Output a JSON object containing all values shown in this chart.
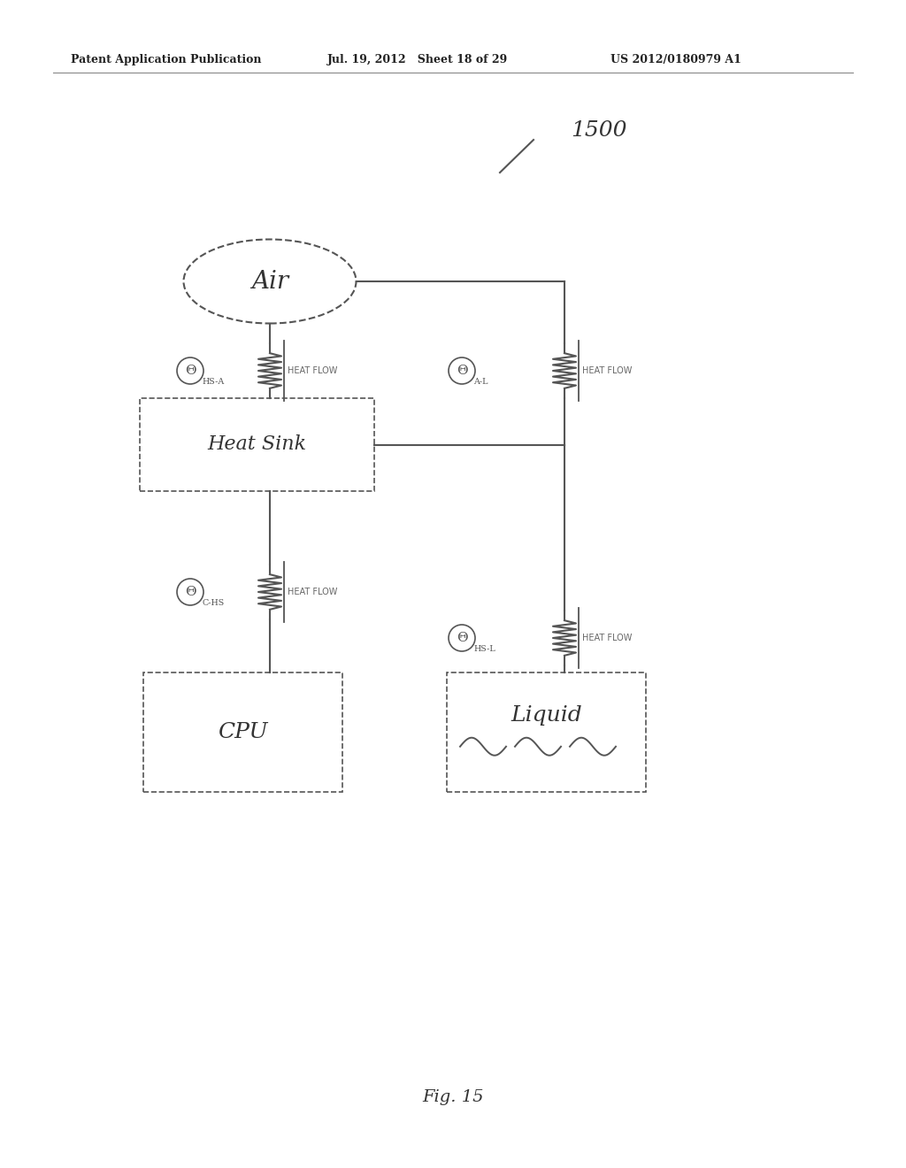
{
  "bg_color": "#ffffff",
  "header_left": "Patent Application Publication",
  "header_mid": "Jul. 19, 2012   Sheet 18 of 29",
  "header_right": "US 2012/0180979 A1",
  "label_1500": "1500",
  "fig_label": "Fig. 15",
  "air_text": "Air",
  "heat_sink_text": "Heat Sink",
  "cpu_text": "CPU",
  "liquid_text": "Liquid",
  "theta_hs_a": "Θ",
  "theta_hs_a_sub": "HS-A",
  "theta_a_l": "Θ",
  "theta_a_l_sub": "A-L",
  "theta_c_hs": "Θ",
  "theta_c_hs_sub": "C-HS",
  "theta_hs_l": "Θ",
  "theta_hs_l_sub": "HS-L",
  "heat_flow_text": "HEAT FLOW",
  "line_color": "#555555",
  "text_color": "#333333"
}
